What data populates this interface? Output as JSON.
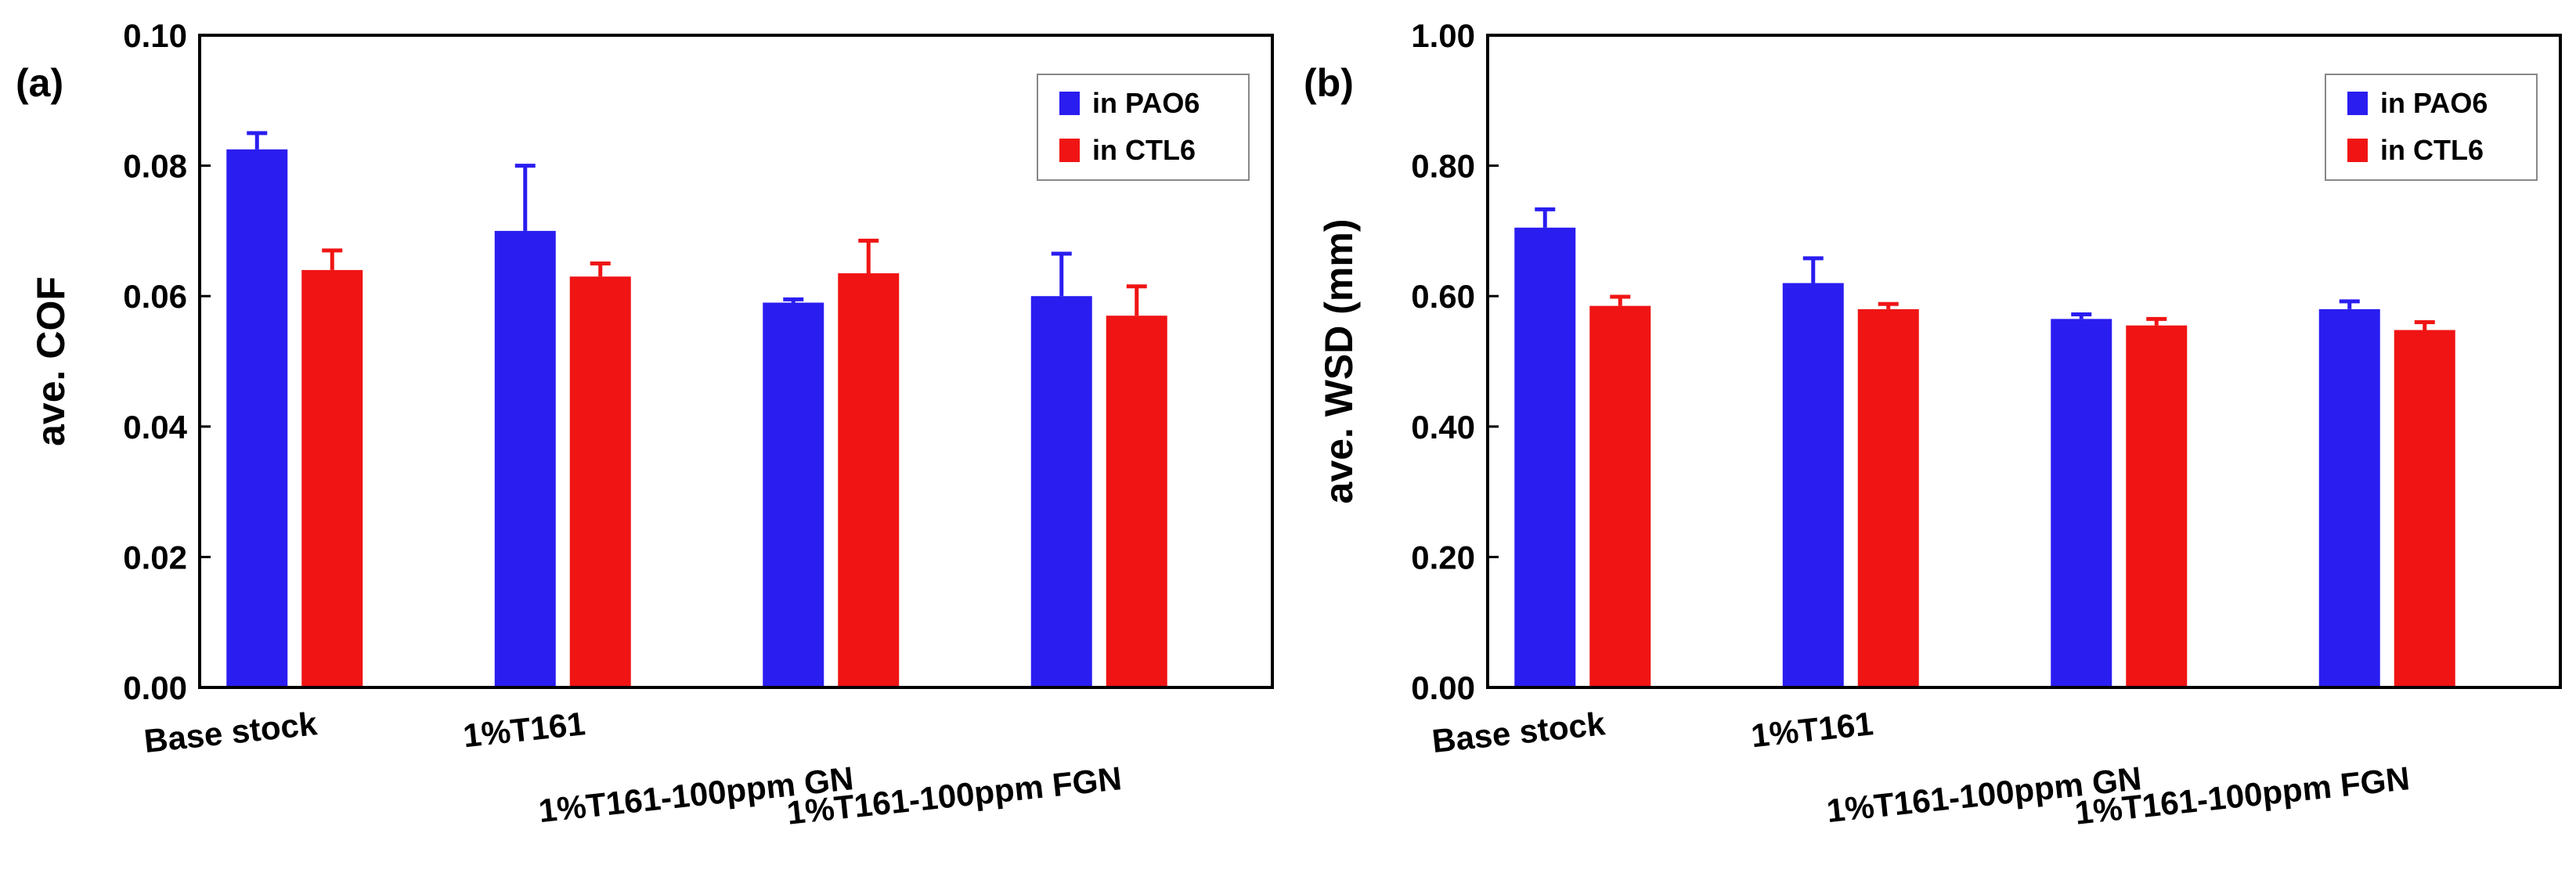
{
  "chart_data": [
    {
      "type": "bar",
      "panel_label": "(a)",
      "title": "",
      "xlabel": "",
      "ylabel": "ave. COF",
      "ylim": [
        0,
        0.1
      ],
      "yticks": [
        "0.00",
        "0.02",
        "0.04",
        "0.06",
        "0.08",
        "0.10"
      ],
      "yticks_values": [
        0,
        0.02,
        0.04,
        0.06,
        0.08,
        0.1
      ],
      "categories": [
        "Base stock",
        "1%T161",
        "1%T161-100ppm GN",
        "1%T161-100ppm FGN"
      ],
      "series": [
        {
          "name": "in PAO6",
          "color": "#2a1df0",
          "values": [
            0.0825,
            0.07,
            0.059,
            0.06
          ],
          "errors": [
            0.0025,
            0.01,
            0.0005,
            0.0065
          ]
        },
        {
          "name": "in CTL6",
          "color": "#f01414",
          "values": [
            0.064,
            0.063,
            0.0635,
            0.057
          ],
          "errors": [
            0.003,
            0.002,
            0.005,
            0.0045
          ]
        }
      ],
      "legend_position": "top-right",
      "grid": false
    },
    {
      "type": "bar",
      "panel_label": "(b)",
      "title": "",
      "xlabel": "",
      "ylabel": "ave. WSD (mm)",
      "ylim": [
        0,
        1.0
      ],
      "yticks": [
        "0.00",
        "0.20",
        "0.40",
        "0.60",
        "0.80",
        "1.00"
      ],
      "yticks_values": [
        0,
        0.2,
        0.4,
        0.6,
        0.8,
        1.0
      ],
      "categories": [
        "Base stock",
        "1%T161",
        "1%T161-100ppm GN",
        "1%T161-100ppm FGN"
      ],
      "series": [
        {
          "name": "in PAO6",
          "color": "#2a1df0",
          "values": [
            0.705,
            0.62,
            0.565,
            0.58
          ],
          "errors": [
            0.028,
            0.038,
            0.007,
            0.012
          ]
        },
        {
          "name": "in CTL6",
          "color": "#f01414",
          "values": [
            0.585,
            0.58,
            0.555,
            0.548
          ],
          "errors": [
            0.014,
            0.008,
            0.01,
            0.012
          ]
        }
      ],
      "legend_position": "top-right",
      "grid": false
    }
  ]
}
